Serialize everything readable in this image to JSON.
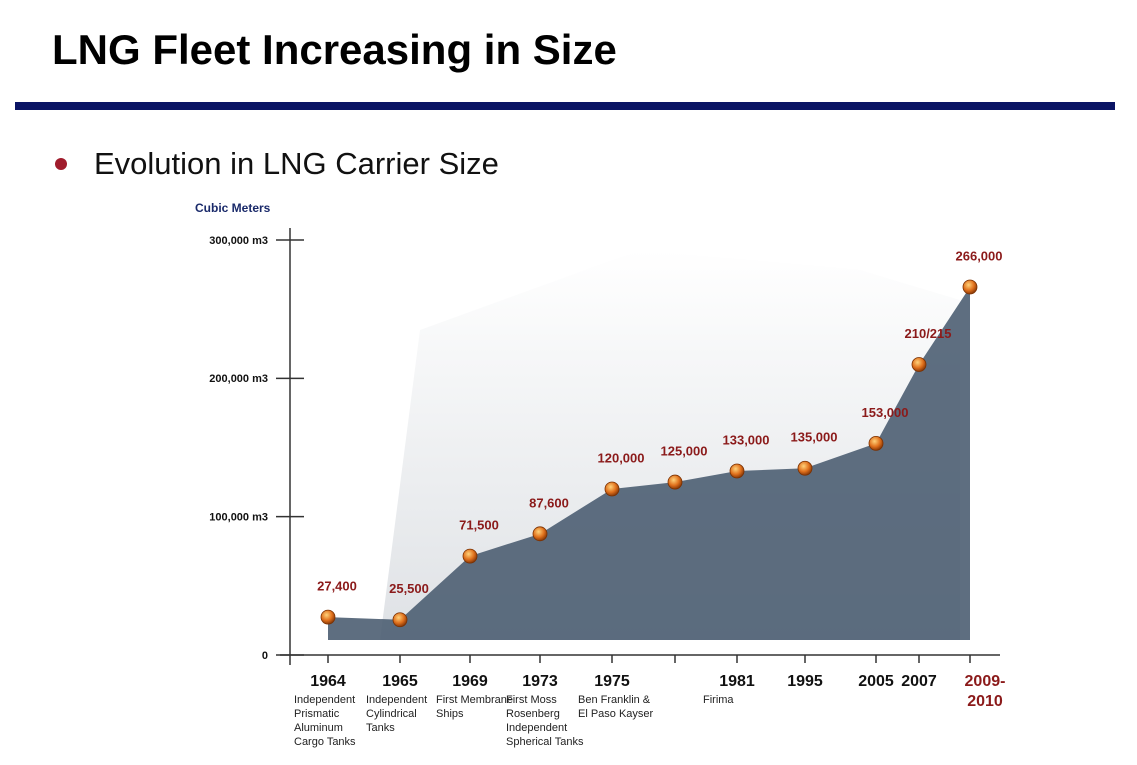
{
  "title": "LNG Fleet Increasing in Size",
  "bullet": "Evolution in LNG Carrier Size",
  "chart_data": {
    "type": "area",
    "y_axis_label": "Cubic Meters",
    "categories": [
      "1964",
      "1965",
      "1969",
      "1973",
      "1975",
      null,
      "1981",
      "1995",
      "2005",
      "2007",
      "2009-\n2010"
    ],
    "notes": [
      "Independent Prismatic Aluminum Cargo Tanks",
      "Independent Cylindrical Tanks",
      "First Membrane Ships",
      "First Moss Rosenberg Independent Spherical Tanks",
      "Ben Franklin & El Paso Kayser",
      null,
      "Firima",
      null,
      null,
      null,
      null
    ],
    "values": [
      27400,
      25500,
      71500,
      87600,
      120000,
      125000,
      133000,
      135000,
      153000,
      210000,
      266000
    ],
    "value_labels": [
      "27,400",
      "25,500",
      "71,500",
      "87,600",
      "120,000",
      "125,000",
      "133,000",
      "135,000",
      "153,000",
      "210/215",
      "266,000"
    ],
    "ylim": [
      0,
      300000
    ],
    "yticks": [
      0,
      {
        "value": 100000,
        "label": "100,000  m3"
      },
      {
        "value": 200000,
        "label": "200,000  m3"
      },
      {
        "value": 300000,
        "label": "300,000  m3"
      }
    ],
    "color": "#4d5e72",
    "marker_color": "#e0701c",
    "label_color": "#8b1a1a"
  }
}
